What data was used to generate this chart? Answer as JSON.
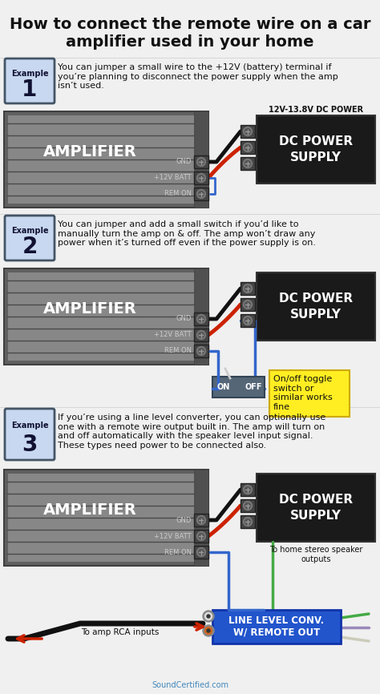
{
  "title": "How to connect the remote wire on a car\namplifier used in your home",
  "bg_color": "#f0f0f0",
  "title_color": "#111111",
  "example1_text": "You can jumper a small wire to the +12V (battery) terminal if\nyou’re planning to disconnect the power supply when the amp\nisn’t used.",
  "example2_text": "You can jumper and add a small switch if you’d like to\nmanually turn the amp on & off. The amp won’t draw any\npower when it’s turned off even if the power supply is on.",
  "example3_text": "If you’re using a line level converter, you can optionally use\none with a remote wire output built in. The amp will turn on\nand off automatically with the speaker level input signal.\nThese types need power to be connected also.",
  "amp_label": "AMPLIFIER",
  "terminals": [
    "GND",
    "+12V BATT",
    "REM ON"
  ],
  "dc_label": "DC POWER\nSUPPLY",
  "dc_sublabel": "12V-13.8V DC POWER",
  "switch_label": "On/off toggle\nswitch or\nsimilar works\nfine",
  "line_label": "LINE LEVEL CONV.\nW/ REMOTE OUT",
  "rca_label": "To amp RCA inputs",
  "speaker_label": "To home stereo speaker\noutputs",
  "footer": "SoundCertified.com",
  "amp_color": "#808080",
  "amp_dark": "#555555",
  "amp_light": "#aaaaaa",
  "dc_color": "#1a1a1a",
  "badge_bg": "#c8d8f0",
  "badge_border": "#445566",
  "wire_black": "#111111",
  "wire_red": "#cc2200",
  "wire_blue": "#3366cc",
  "switch_color": "#556677",
  "yellow_bg": "#ffee22",
  "llc_color": "#2255cc"
}
